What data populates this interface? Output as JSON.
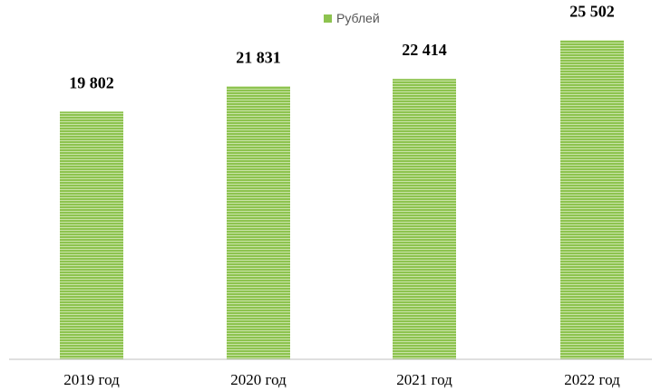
{
  "chart_data": {
    "type": "bar",
    "categories": [
      "2019 год",
      "2020 год",
      "2021 год",
      "2022 год"
    ],
    "series": [
      {
        "name": "Рублей",
        "values": [
          19802,
          21831,
          22414,
          25502
        ]
      }
    ],
    "data_labels": [
      "19 802",
      "21 831",
      "22 414",
      "25 502"
    ],
    "title": "",
    "xlabel": "",
    "ylabel": "",
    "ylim": [
      0,
      28000
    ],
    "grid": false,
    "legend_position": "top-center",
    "colors": {
      "bar": "#8dc34f",
      "bar_stripe": "#c9e3a7",
      "axis": "#bfbfbf",
      "text": "#000000"
    }
  }
}
